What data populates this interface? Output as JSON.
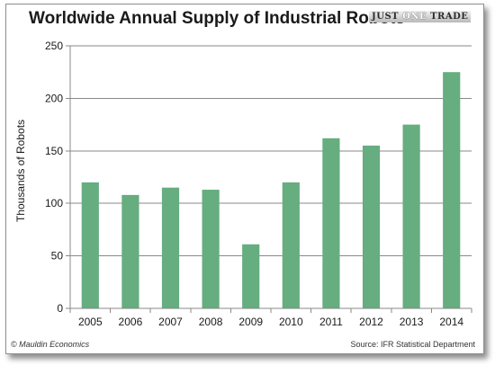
{
  "header": {
    "title": "Worldwide Annual Supply of Industrial Robots",
    "brand": {
      "part1": "JUST ",
      "part2": "ONE",
      "part3": " TRADE"
    }
  },
  "footer": {
    "copyright": "© Mauldin Economics",
    "source": "Source: IFR Statistical Department"
  },
  "colors": {
    "bar": "#66ad80",
    "axis": "#888888",
    "grid": "#8a8a8a",
    "text": "#1a1a1a"
  },
  "chart_data": {
    "type": "bar",
    "title": "Worldwide Annual Supply of Industrial Robots",
    "xlabel": "",
    "ylabel": "Thousands of Robots",
    "categories": [
      "2005",
      "2006",
      "2007",
      "2008",
      "2009",
      "2010",
      "2011",
      "2012",
      "2013",
      "2014"
    ],
    "values": [
      120,
      108,
      115,
      113,
      61,
      120,
      162,
      155,
      175,
      225
    ],
    "ylim": [
      0,
      250
    ],
    "yticks": [
      0,
      50,
      100,
      150,
      200,
      250
    ],
    "grid": true,
    "legend": "none"
  }
}
